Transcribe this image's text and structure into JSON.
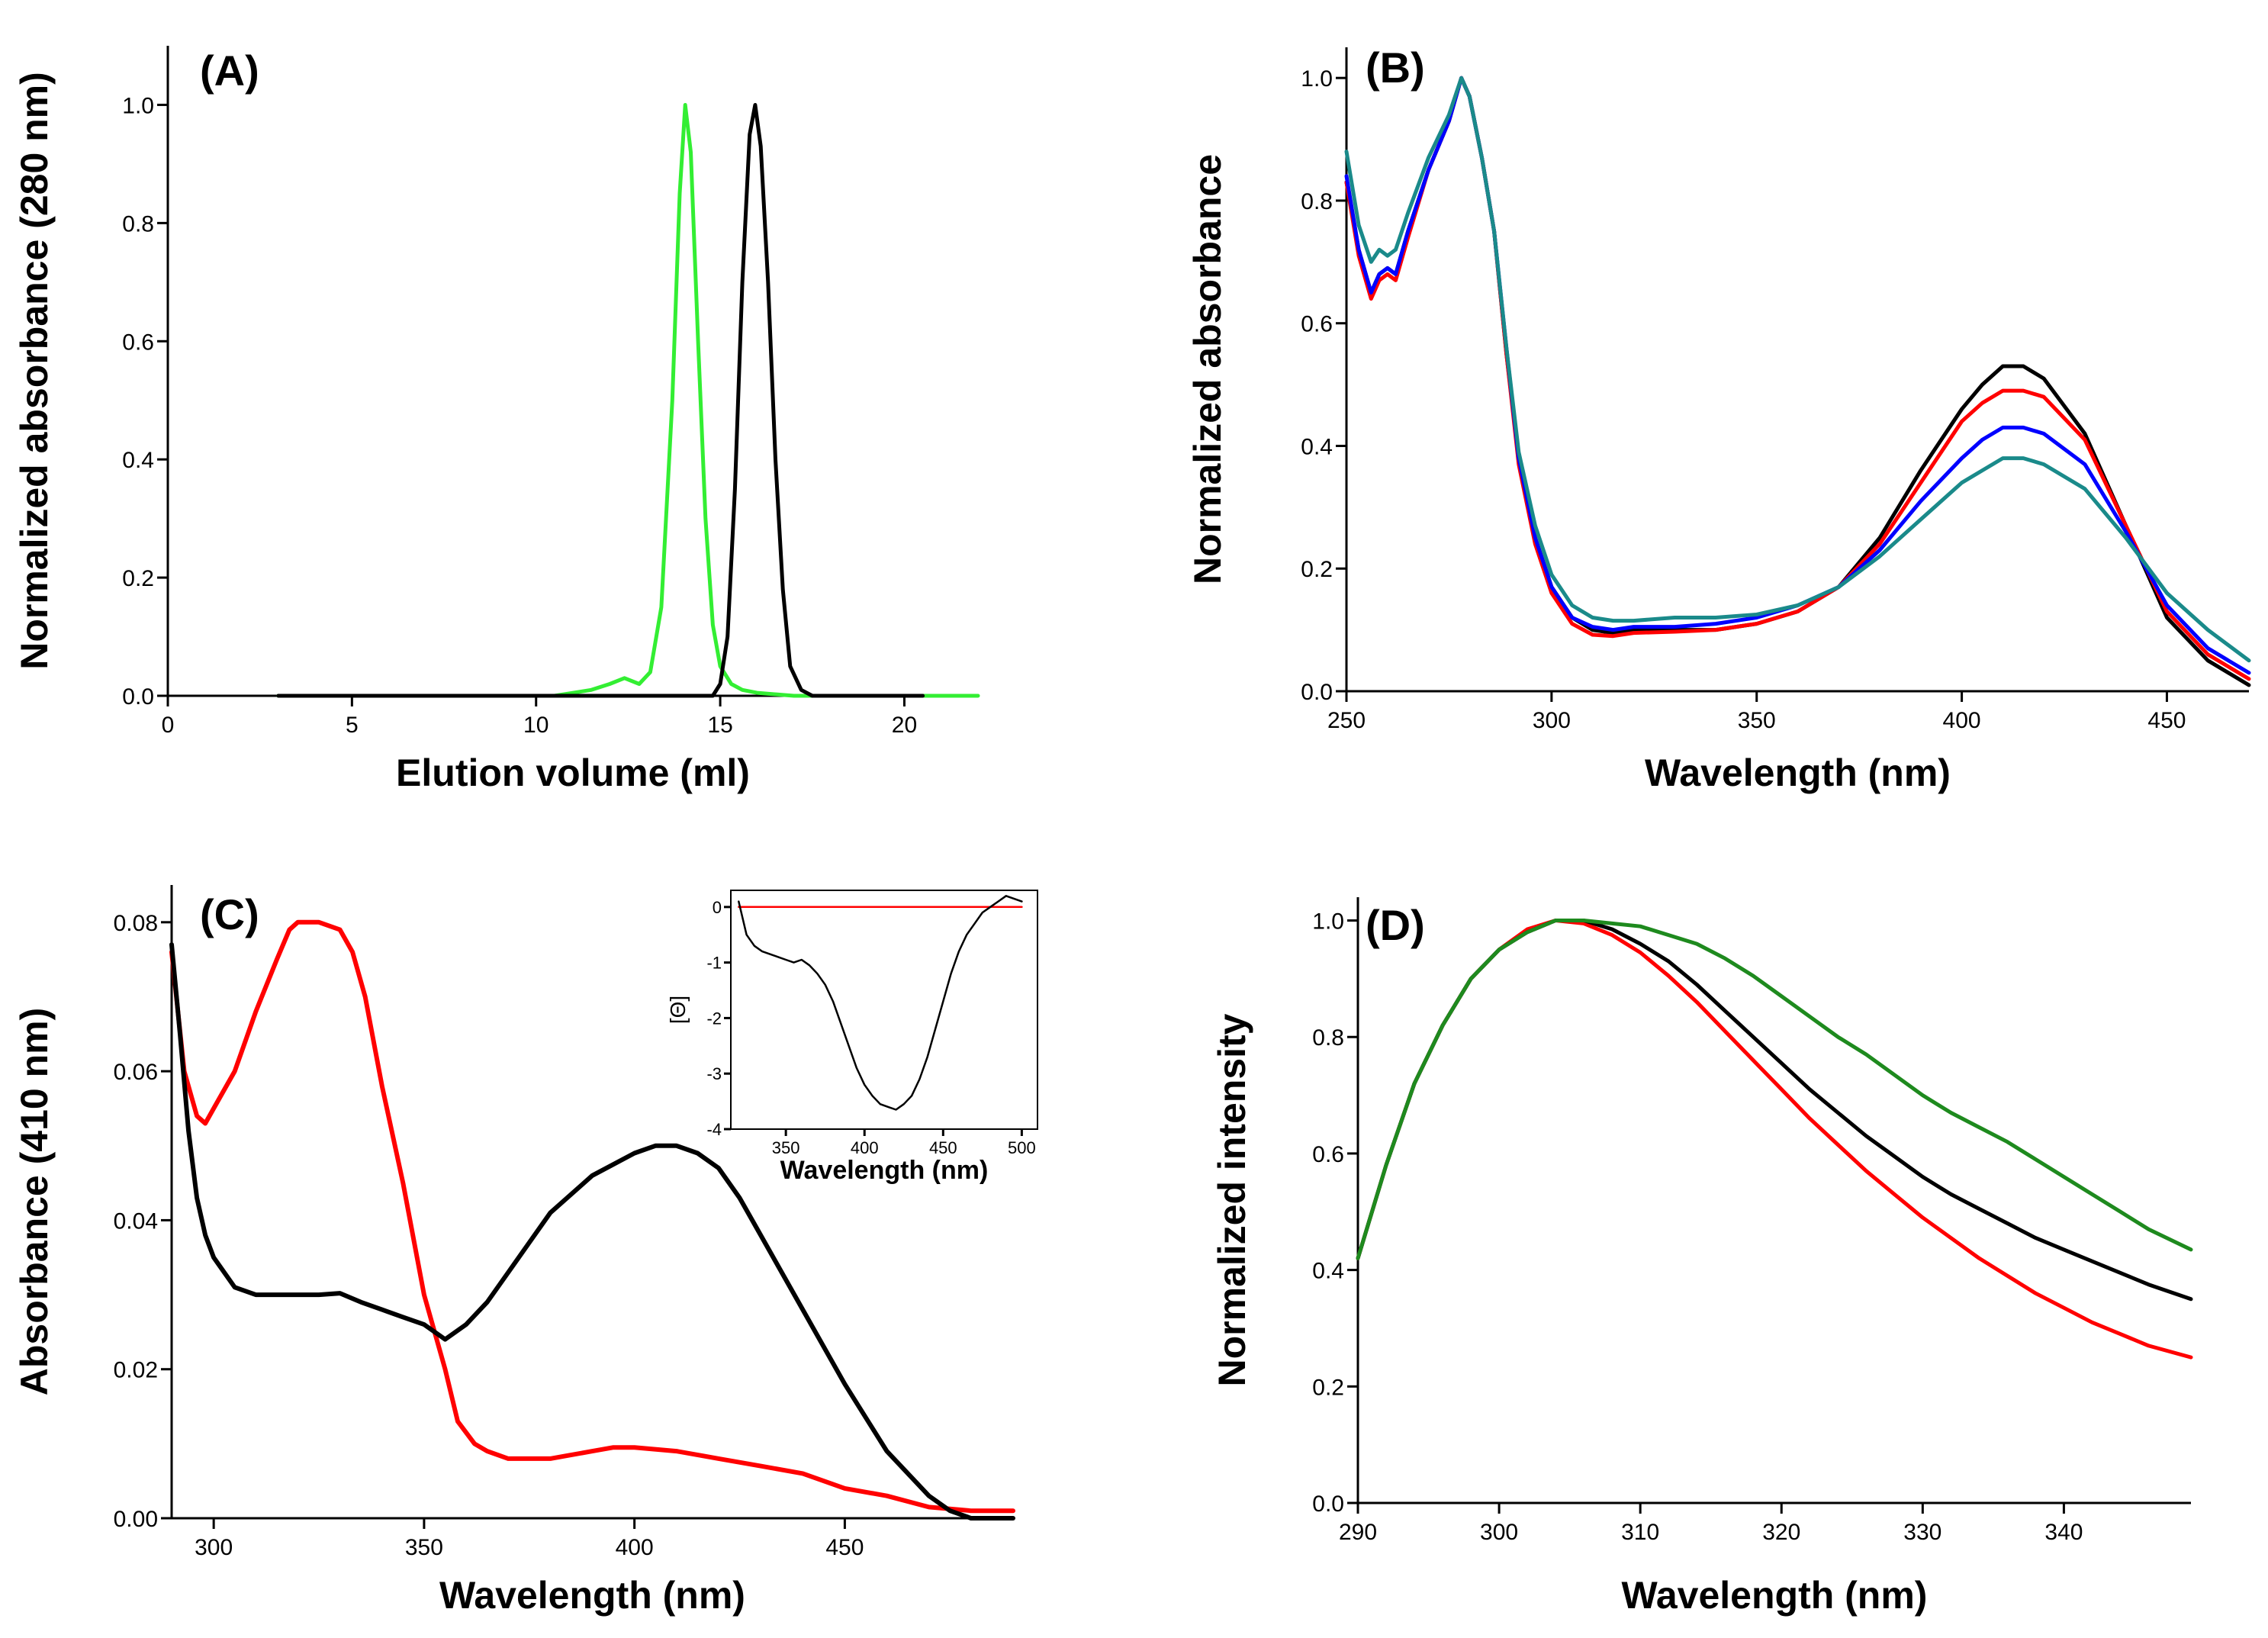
{
  "chart_data": [
    {
      "panel": "(A)",
      "type": "line",
      "xlabel": "Elution volume (ml)",
      "ylabel": "Normalized absorbance (280 nm)",
      "xlim": [
        0,
        22
      ],
      "ylim": [
        0,
        1.1
      ],
      "xticks": [
        0,
        5,
        10,
        15,
        20
      ],
      "yticks": [
        0.0,
        0.2,
        0.4,
        0.6,
        0.8,
        1.0
      ],
      "xtick_labels": [
        "0",
        "5",
        "10",
        "15",
        "20"
      ],
      "ytick_labels": [
        "0.0",
        "0.2",
        "0.4",
        "0.6",
        "0.8",
        "1.0"
      ],
      "series": [
        {
          "name": "green",
          "color": "#33ee33",
          "x": [
            3,
            10.5,
            11.5,
            12.0,
            12.4,
            12.8,
            13.1,
            13.4,
            13.7,
            13.9,
            14.05,
            14.2,
            14.4,
            14.6,
            14.8,
            15.0,
            15.3,
            15.6,
            16.0,
            17,
            18,
            20,
            22
          ],
          "y": [
            0,
            0,
            0.01,
            0.02,
            0.03,
            0.02,
            0.04,
            0.15,
            0.5,
            0.85,
            1.0,
            0.92,
            0.6,
            0.3,
            0.12,
            0.05,
            0.02,
            0.01,
            0.005,
            0,
            0,
            0,
            0
          ]
        },
        {
          "name": "black",
          "color": "#000000",
          "x": [
            3,
            14.8,
            15.0,
            15.2,
            15.4,
            15.6,
            15.8,
            15.95,
            16.1,
            16.3,
            16.5,
            16.7,
            16.9,
            17.2,
            17.5,
            18,
            19,
            20.5
          ],
          "y": [
            0,
            0,
            0.02,
            0.1,
            0.35,
            0.7,
            0.95,
            1.0,
            0.93,
            0.7,
            0.4,
            0.18,
            0.05,
            0.01,
            0,
            0,
            0,
            0
          ]
        }
      ]
    },
    {
      "panel": "(B)",
      "type": "line",
      "xlabel": "Wavelength (nm)",
      "ylabel": "Normalized absorbance",
      "xlim": [
        250,
        470
      ],
      "ylim": [
        0,
        1.05
      ],
      "xticks": [
        250,
        300,
        350,
        400,
        450
      ],
      "yticks": [
        0.0,
        0.2,
        0.4,
        0.6,
        0.8,
        1.0
      ],
      "xtick_labels": [
        "250",
        "300",
        "350",
        "400",
        "450"
      ],
      "ytick_labels": [
        "0.0",
        "0.2",
        "0.4",
        "0.6",
        "0.8",
        "1.0"
      ],
      "series": [
        {
          "name": "black",
          "color": "#000000",
          "x": [
            250,
            253,
            256,
            258,
            260,
            262,
            265,
            270,
            275,
            278,
            280,
            283,
            286,
            289,
            292,
            296,
            300,
            305,
            310,
            315,
            320,
            330,
            340,
            350,
            360,
            370,
            380,
            390,
            400,
            405,
            410,
            415,
            420,
            430,
            440,
            450,
            460,
            470
          ],
          "y": [
            0.83,
            0.72,
            0.65,
            0.68,
            0.69,
            0.68,
            0.75,
            0.85,
            0.93,
            1.0,
            0.97,
            0.87,
            0.75,
            0.55,
            0.38,
            0.25,
            0.17,
            0.12,
            0.1,
            0.095,
            0.1,
            0.1,
            0.1,
            0.11,
            0.13,
            0.17,
            0.25,
            0.36,
            0.46,
            0.5,
            0.53,
            0.53,
            0.51,
            0.42,
            0.27,
            0.12,
            0.05,
            0.01
          ]
        },
        {
          "name": "red",
          "color": "#ff0000",
          "x": [
            250,
            253,
            256,
            258,
            260,
            262,
            265,
            270,
            275,
            278,
            280,
            283,
            286,
            289,
            292,
            296,
            300,
            305,
            310,
            315,
            320,
            330,
            340,
            350,
            360,
            370,
            380,
            390,
            400,
            405,
            410,
            415,
            420,
            430,
            440,
            450,
            460,
            470
          ],
          "y": [
            0.83,
            0.71,
            0.64,
            0.67,
            0.68,
            0.67,
            0.74,
            0.85,
            0.93,
            1.0,
            0.97,
            0.87,
            0.75,
            0.55,
            0.37,
            0.24,
            0.16,
            0.11,
            0.092,
            0.09,
            0.095,
            0.097,
            0.1,
            0.11,
            0.13,
            0.17,
            0.24,
            0.34,
            0.44,
            0.47,
            0.49,
            0.49,
            0.48,
            0.41,
            0.27,
            0.13,
            0.06,
            0.02
          ]
        },
        {
          "name": "blue",
          "color": "#0000ff",
          "x": [
            250,
            253,
            256,
            258,
            260,
            262,
            265,
            270,
            275,
            278,
            280,
            283,
            286,
            289,
            292,
            296,
            300,
            305,
            310,
            315,
            320,
            330,
            340,
            350,
            360,
            370,
            380,
            390,
            400,
            405,
            410,
            415,
            420,
            430,
            440,
            450,
            460,
            470
          ],
          "y": [
            0.84,
            0.72,
            0.65,
            0.68,
            0.69,
            0.68,
            0.75,
            0.85,
            0.93,
            1.0,
            0.97,
            0.87,
            0.75,
            0.56,
            0.38,
            0.25,
            0.17,
            0.12,
            0.105,
            0.1,
            0.105,
            0.105,
            0.11,
            0.12,
            0.14,
            0.17,
            0.23,
            0.31,
            0.38,
            0.41,
            0.43,
            0.43,
            0.42,
            0.37,
            0.26,
            0.14,
            0.07,
            0.03
          ]
        },
        {
          "name": "teal",
          "color": "#1a8a8a",
          "x": [
            250,
            253,
            256,
            258,
            260,
            262,
            265,
            270,
            275,
            278,
            280,
            283,
            286,
            289,
            292,
            296,
            300,
            305,
            310,
            315,
            320,
            330,
            340,
            350,
            360,
            370,
            380,
            390,
            400,
            405,
            410,
            415,
            420,
            430,
            440,
            450,
            460,
            470
          ],
          "y": [
            0.88,
            0.76,
            0.7,
            0.72,
            0.71,
            0.72,
            0.78,
            0.87,
            0.94,
            1.0,
            0.97,
            0.87,
            0.75,
            0.56,
            0.39,
            0.27,
            0.19,
            0.14,
            0.12,
            0.115,
            0.115,
            0.12,
            0.12,
            0.125,
            0.14,
            0.17,
            0.22,
            0.28,
            0.34,
            0.36,
            0.38,
            0.38,
            0.37,
            0.33,
            0.25,
            0.16,
            0.1,
            0.05
          ]
        }
      ]
    },
    {
      "panel": "(C)",
      "type": "line",
      "xlabel": "Wavelength (nm)",
      "ylabel": "Absorbance (410 nm)",
      "xlim": [
        290,
        490
      ],
      "ylim": [
        0,
        0.085
      ],
      "xticks": [
        300,
        350,
        400,
        450
      ],
      "yticks": [
        0.0,
        0.02,
        0.04,
        0.06,
        0.08
      ],
      "xtick_labels": [
        "300",
        "350",
        "400",
        "450"
      ],
      "ytick_labels": [
        "0.00",
        "0.02",
        "0.04",
        "0.06",
        "0.08"
      ],
      "series": [
        {
          "name": "red",
          "color": "#ff0000",
          "x": [
            290,
            293,
            296,
            298,
            300,
            305,
            310,
            315,
            318,
            320,
            325,
            330,
            333,
            336,
            340,
            345,
            350,
            355,
            358,
            362,
            365,
            370,
            380,
            390,
            395,
            400,
            410,
            420,
            430,
            440,
            450,
            460,
            470,
            480,
            490
          ],
          "y": [
            0.076,
            0.06,
            0.054,
            0.053,
            0.055,
            0.06,
            0.068,
            0.075,
            0.079,
            0.08,
            0.08,
            0.079,
            0.076,
            0.07,
            0.058,
            0.045,
            0.03,
            0.02,
            0.013,
            0.01,
            0.009,
            0.008,
            0.008,
            0.009,
            0.0095,
            0.0095,
            0.009,
            0.008,
            0.007,
            0.006,
            0.004,
            0.003,
            0.0015,
            0.001,
            0.001
          ]
        },
        {
          "name": "black",
          "color": "#000000",
          "x": [
            290,
            292,
            294,
            296,
            298,
            300,
            305,
            310,
            315,
            320,
            325,
            330,
            335,
            340,
            345,
            350,
            355,
            360,
            365,
            370,
            375,
            380,
            390,
            400,
            405,
            410,
            415,
            420,
            425,
            430,
            440,
            450,
            460,
            470,
            475,
            480,
            490
          ],
          "y": [
            0.077,
            0.065,
            0.052,
            0.043,
            0.038,
            0.035,
            0.031,
            0.03,
            0.03,
            0.03,
            0.03,
            0.0302,
            0.029,
            0.028,
            0.027,
            0.026,
            0.024,
            0.026,
            0.029,
            0.033,
            0.037,
            0.041,
            0.046,
            0.049,
            0.05,
            0.05,
            0.049,
            0.047,
            0.043,
            0.038,
            0.028,
            0.018,
            0.009,
            0.003,
            0.001,
            0,
            0
          ]
        }
      ]
    },
    {
      "panel": "(C-inset)",
      "type": "line",
      "xlabel": "Wavelength (nm)",
      "ylabel": "[Θ]",
      "xlim": [
        315,
        510
      ],
      "ylim": [
        -4,
        0.3
      ],
      "xticks": [
        350,
        400,
        450,
        500
      ],
      "yticks": [
        0,
        -1,
        -2,
        -3,
        -4
      ],
      "xtick_labels": [
        "350",
        "400",
        "450",
        "500"
      ],
      "ytick_labels": [
        "0",
        "-1",
        "-2",
        "-3",
        "-4"
      ],
      "series": [
        {
          "name": "red",
          "color": "#ff0000",
          "x": [
            320,
            340,
            360,
            380,
            400,
            420,
            440,
            460,
            480,
            500
          ],
          "y": [
            0,
            0,
            0,
            0,
            0,
            0,
            0,
            0,
            0,
            0
          ]
        },
        {
          "name": "black",
          "color": "#000000",
          "x": [
            320,
            325,
            330,
            335,
            340,
            345,
            350,
            355,
            360,
            365,
            370,
            375,
            380,
            385,
            390,
            395,
            400,
            405,
            410,
            415,
            420,
            425,
            430,
            435,
            440,
            445,
            450,
            455,
            460,
            465,
            470,
            475,
            480,
            485,
            490,
            495,
            500
          ],
          "y": [
            0.1,
            -0.5,
            -0.7,
            -0.8,
            -0.85,
            -0.9,
            -0.95,
            -1.0,
            -0.95,
            -1.05,
            -1.2,
            -1.4,
            -1.7,
            -2.1,
            -2.5,
            -2.9,
            -3.2,
            -3.4,
            -3.55,
            -3.6,
            -3.65,
            -3.55,
            -3.4,
            -3.1,
            -2.7,
            -2.2,
            -1.7,
            -1.2,
            -0.8,
            -0.5,
            -0.3,
            -0.1,
            0.0,
            0.1,
            0.2,
            0.15,
            0.1
          ]
        }
      ]
    },
    {
      "panel": "(D)",
      "type": "line",
      "xlabel": "Wavelength (nm)",
      "ylabel": "Normalized intensity",
      "xlim": [
        290,
        349
      ],
      "ylim": [
        0,
        1.04
      ],
      "xticks": [
        290,
        300,
        310,
        320,
        330,
        340
      ],
      "yticks": [
        0.0,
        0.2,
        0.4,
        0.6,
        0.8,
        1.0
      ],
      "xtick_labels": [
        "290",
        "300",
        "310",
        "320",
        "330",
        "340"
      ],
      "ytick_labels": [
        "0.0",
        "0.2",
        "0.4",
        "0.6",
        "0.8",
        "1.0"
      ],
      "series": [
        {
          "name": "red",
          "color": "#ff0000",
          "x": [
            290,
            292,
            294,
            296,
            298,
            300,
            302,
            304,
            306,
            308,
            310,
            312,
            314,
            316,
            318,
            320,
            322,
            324,
            326,
            328,
            330,
            332,
            334,
            336,
            338,
            340,
            342,
            344,
            346,
            349
          ],
          "y": [
            0.42,
            0.58,
            0.72,
            0.82,
            0.9,
            0.95,
            0.985,
            1.0,
            0.995,
            0.975,
            0.945,
            0.905,
            0.86,
            0.81,
            0.76,
            0.71,
            0.66,
            0.615,
            0.57,
            0.53,
            0.49,
            0.455,
            0.42,
            0.39,
            0.36,
            0.335,
            0.31,
            0.29,
            0.27,
            0.25
          ]
        },
        {
          "name": "black",
          "color": "#000000",
          "x": [
            290,
            292,
            294,
            296,
            298,
            300,
            302,
            304,
            306,
            308,
            310,
            312,
            314,
            316,
            318,
            320,
            322,
            324,
            326,
            328,
            330,
            332,
            334,
            336,
            338,
            340,
            342,
            344,
            346,
            349
          ],
          "y": [
            0.42,
            0.58,
            0.72,
            0.82,
            0.9,
            0.95,
            0.98,
            1.0,
            1.0,
            0.985,
            0.96,
            0.93,
            0.89,
            0.845,
            0.8,
            0.755,
            0.71,
            0.67,
            0.63,
            0.595,
            0.56,
            0.53,
            0.505,
            0.48,
            0.455,
            0.435,
            0.415,
            0.395,
            0.375,
            0.35
          ]
        },
        {
          "name": "green",
          "color": "#1e8a1e",
          "x": [
            290,
            292,
            294,
            296,
            298,
            300,
            302,
            304,
            306,
            308,
            310,
            312,
            314,
            316,
            318,
            320,
            322,
            324,
            326,
            328,
            330,
            332,
            334,
            336,
            338,
            340,
            342,
            344,
            346,
            349
          ],
          "y": [
            0.42,
            0.58,
            0.72,
            0.82,
            0.9,
            0.95,
            0.98,
            1.0,
            1.0,
            0.995,
            0.99,
            0.975,
            0.96,
            0.935,
            0.905,
            0.87,
            0.835,
            0.8,
            0.77,
            0.735,
            0.7,
            0.67,
            0.645,
            0.62,
            0.59,
            0.56,
            0.53,
            0.5,
            0.47,
            0.435
          ]
        }
      ]
    }
  ]
}
